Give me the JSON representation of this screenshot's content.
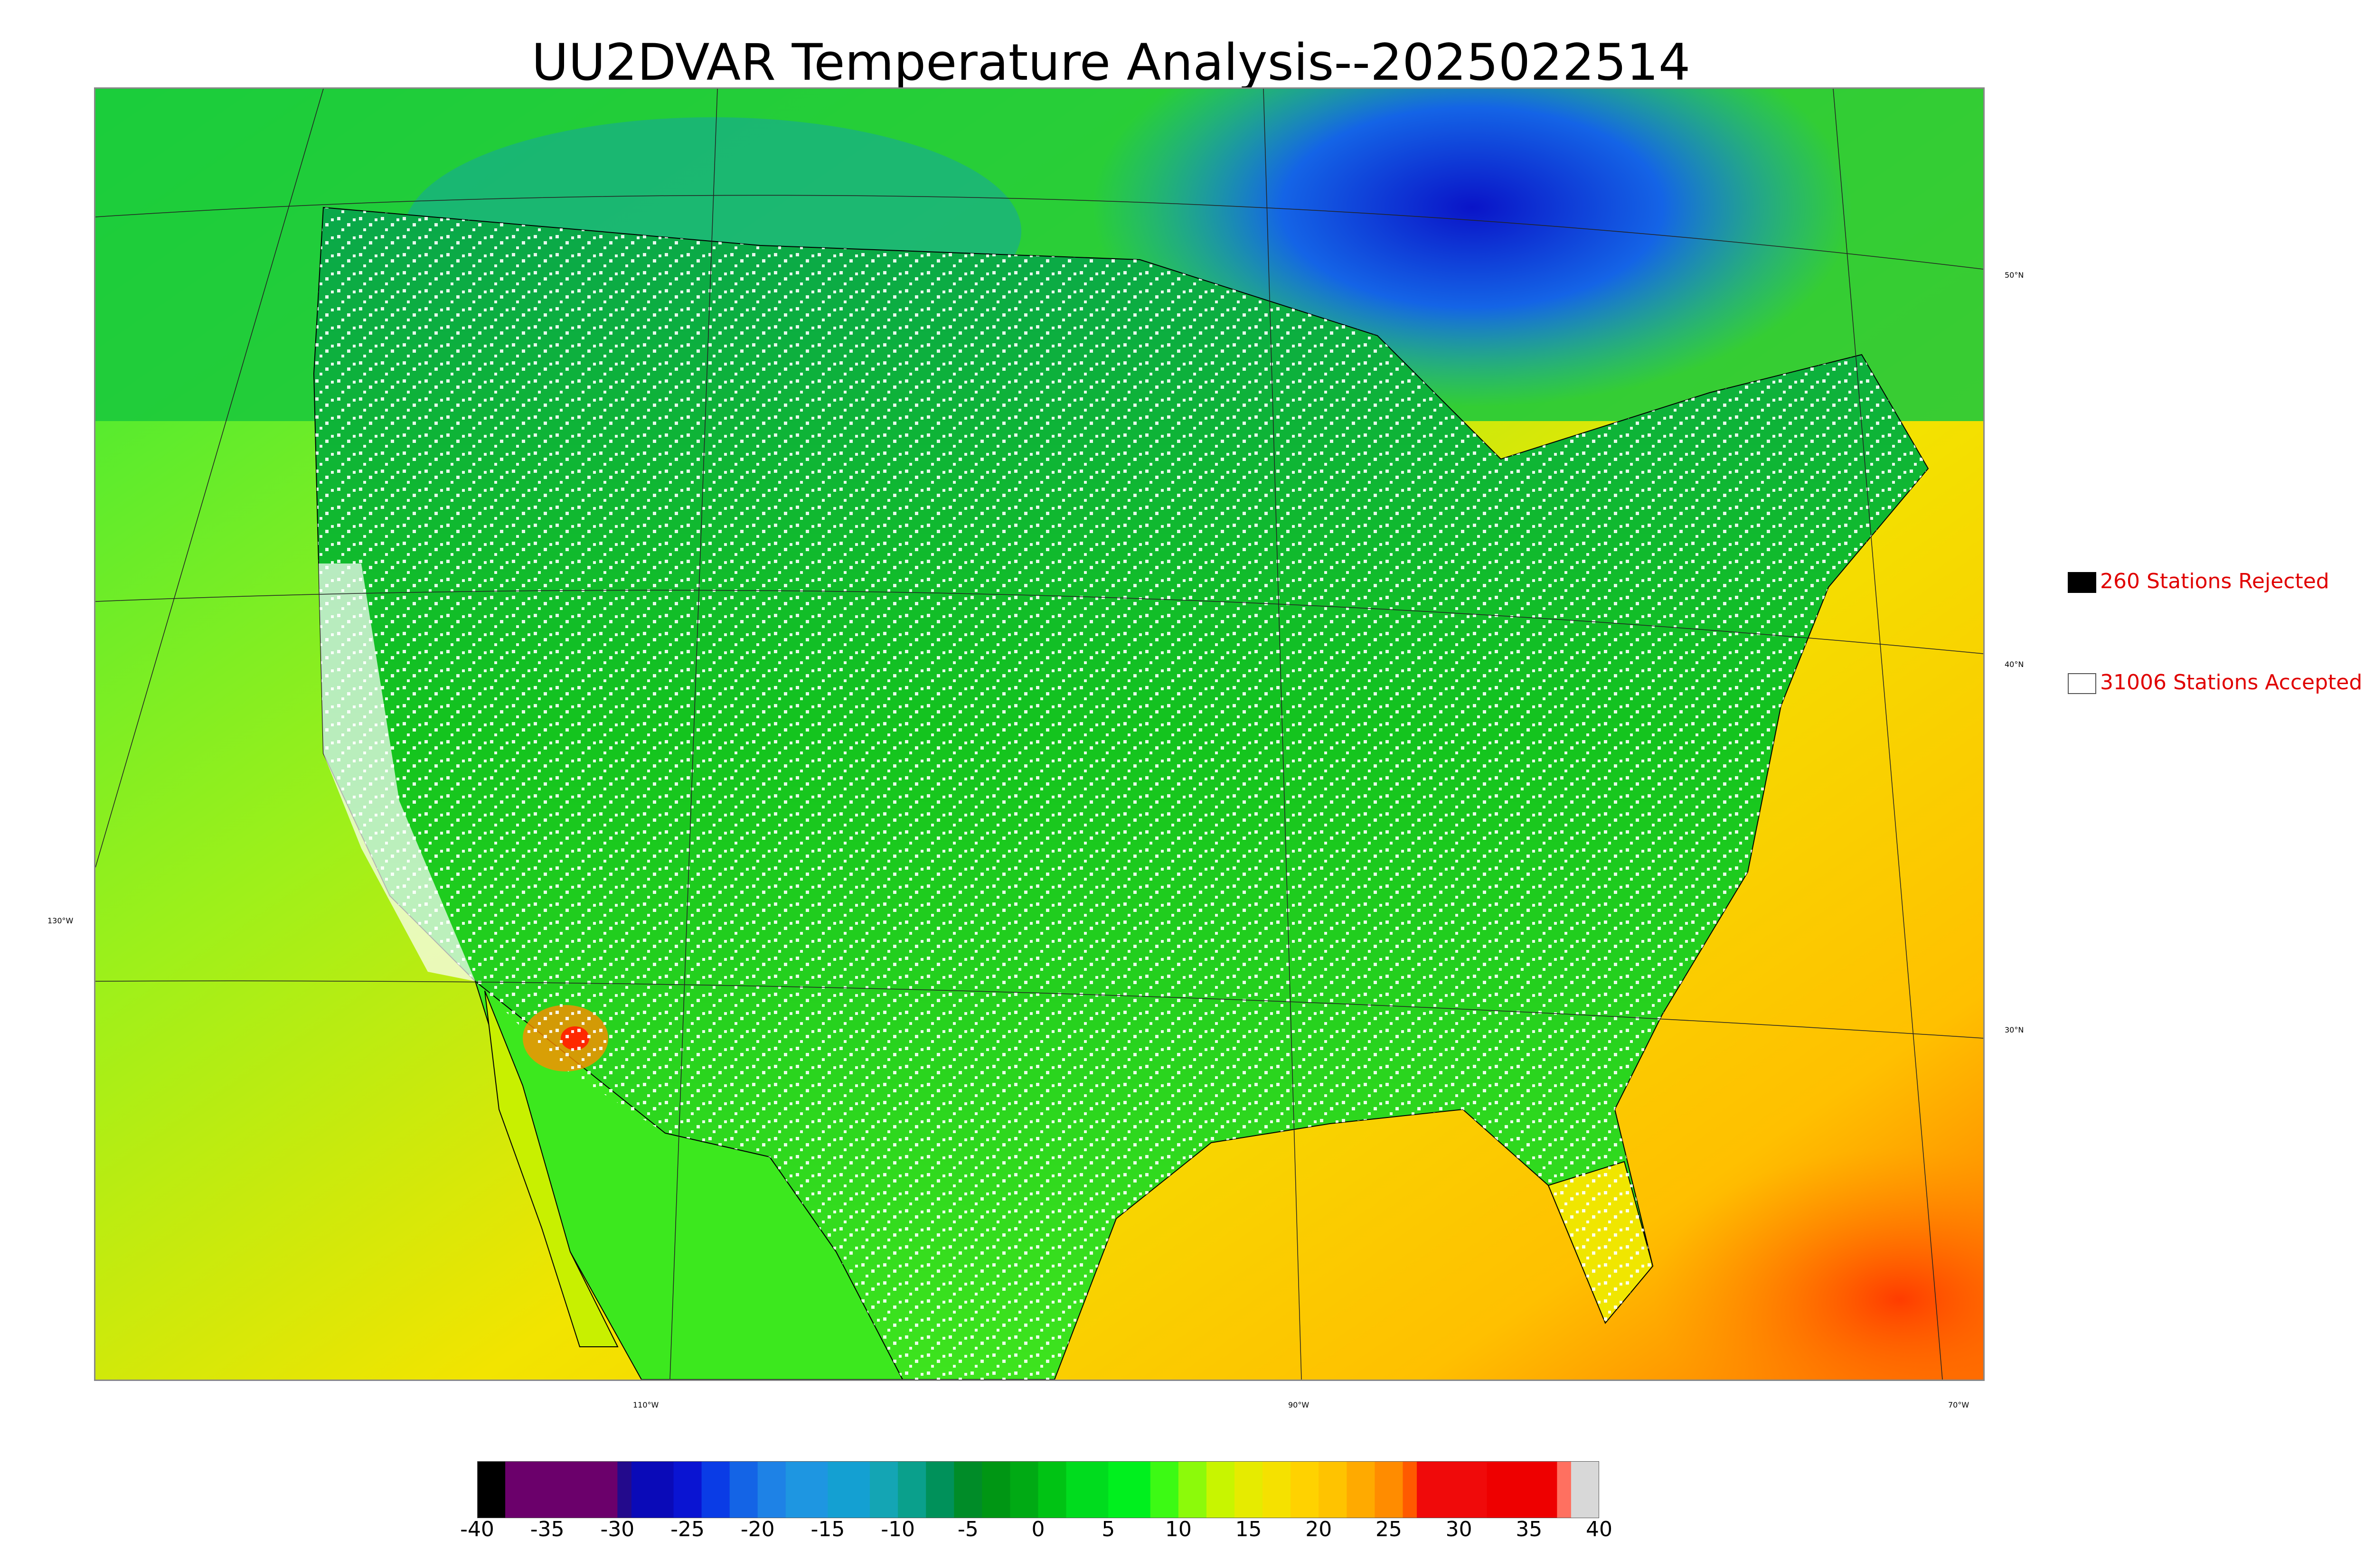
{
  "title": "UU2DVAR Temperature Analysis--2025022514",
  "legend": {
    "rejected": {
      "label": "260 Stations Rejected",
      "box_color": "#000000"
    },
    "accepted": {
      "label": "31006 Stations Accepted",
      "box_color": "#ffffff"
    },
    "text_color": "#e00000"
  },
  "lat_labels": [
    "50°N",
    "40°N",
    "30°N"
  ],
  "lon_labels": [
    "130°W",
    "110°W",
    "90°W",
    "70°W"
  ],
  "colorbar": {
    "min": -40,
    "max": 40,
    "ticks": [
      "-40",
      "-35",
      "-30",
      "-25",
      "-20",
      "-15",
      "-10",
      "-5",
      "0",
      "5",
      "10",
      "15",
      "20",
      "25",
      "30",
      "35",
      "40"
    ],
    "bands": [
      {
        "from": -40,
        "to": -38,
        "color": "#000000"
      },
      {
        "from": -38,
        "to": -30,
        "color": "#6b006b"
      },
      {
        "from": -30,
        "to": -29,
        "color": "#230a8c"
      },
      {
        "from": -29,
        "to": -26,
        "color": "#0a0ab8"
      },
      {
        "from": -26,
        "to": -24,
        "color": "#0a14d2"
      },
      {
        "from": -24,
        "to": -22,
        "color": "#0a3ce6"
      },
      {
        "from": -22,
        "to": -20,
        "color": "#1464e6"
      },
      {
        "from": -20,
        "to": -18,
        "color": "#1e82e6"
      },
      {
        "from": -18,
        "to": -15,
        "color": "#1e96e1"
      },
      {
        "from": -15,
        "to": -12,
        "color": "#14a0d2"
      },
      {
        "from": -12,
        "to": -10,
        "color": "#14a5b4"
      },
      {
        "from": -10,
        "to": -8,
        "color": "#0aa08c"
      },
      {
        "from": -8,
        "to": -6,
        "color": "#00915a"
      },
      {
        "from": -6,
        "to": -4,
        "color": "#008c28"
      },
      {
        "from": -4,
        "to": -2,
        "color": "#009614"
      },
      {
        "from": -2,
        "to": 0,
        "color": "#00aa14"
      },
      {
        "from": 0,
        "to": 2,
        "color": "#00c314"
      },
      {
        "from": 2,
        "to": 5,
        "color": "#00dc1e"
      },
      {
        "from": 5,
        "to": 8,
        "color": "#00f01e"
      },
      {
        "from": 8,
        "to": 10,
        "color": "#3cfa14"
      },
      {
        "from": 10,
        "to": 12,
        "color": "#8cfa0a"
      },
      {
        "from": 12,
        "to": 14,
        "color": "#c8f500"
      },
      {
        "from": 14,
        "to": 16,
        "color": "#e6eb00"
      },
      {
        "from": 16,
        "to": 18,
        "color": "#f5e100"
      },
      {
        "from": 18,
        "to": 20,
        "color": "#ffd200"
      },
      {
        "from": 20,
        "to": 22,
        "color": "#ffc300"
      },
      {
        "from": 22,
        "to": 24,
        "color": "#ffaa00"
      },
      {
        "from": 24,
        "to": 26,
        "color": "#ff8c00"
      },
      {
        "from": 26,
        "to": 27,
        "color": "#ff5a00"
      },
      {
        "from": 27,
        "to": 32,
        "color": "#f00a0a"
      },
      {
        "from": 32,
        "to": 37,
        "color": "#ee0000"
      },
      {
        "from": 37,
        "to": 38,
        "color": "#ff7060"
      },
      {
        "from": 38,
        "to": 40,
        "color": "#d8d8d8"
      }
    ]
  }
}
